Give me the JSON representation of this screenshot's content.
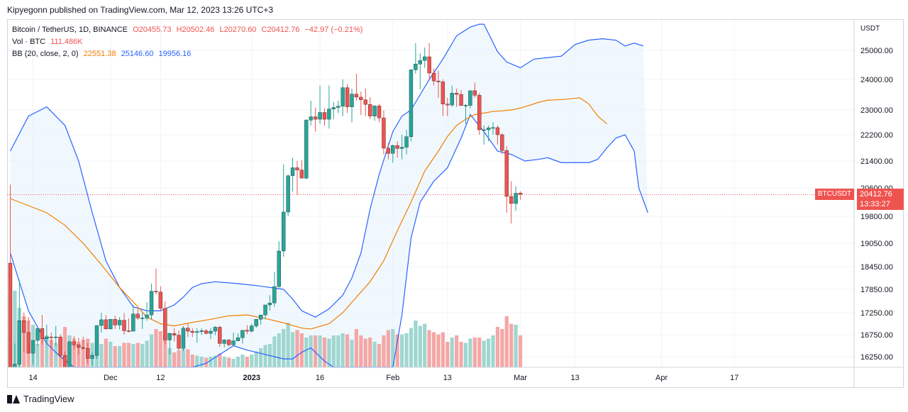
{
  "header": {
    "published": "Kipyegonn published on TradingView.com, Mar 12, 2023 13:26 UTC+3"
  },
  "legend": {
    "symbol": "Bitcoin / TetherUS, 1D, BINANCE",
    "open": "O20455.73",
    "high": "H20502.46",
    "low": "L20270.60",
    "close": "C20412.76",
    "change": "−42.97 (−0.21%)",
    "vol_label": "Vol · BTC",
    "vol_value": "111.486K",
    "bb_label": "BB (20, close, 2, 0)",
    "bb_basis": "22551.38",
    "bb_upper": "25146.60",
    "bb_lower": "19956.16"
  },
  "price_axis": {
    "currency": "USDT",
    "symbol_tag": "BTCUSDT",
    "last_price": "20412.76",
    "countdown": "13:33:27"
  },
  "footer": {
    "brand": "TradingView"
  },
  "colors": {
    "up": "#26a69a",
    "down": "#ef5350",
    "basis": "#f57c00",
    "bands": "#2962ff",
    "band_fill": "#e3f2fd",
    "vol_up": "#9fd6d0",
    "vol_down": "#f4a7a6"
  },
  "chart_data": {
    "type": "candlestick",
    "title": "Bitcoin / TetherUS, 1D, BINANCE",
    "ylabel": "USDT",
    "y_ticks": [
      25000,
      24000,
      23000,
      22200,
      21400,
      20600,
      19800,
      19050,
      18450,
      17850,
      17250,
      16750,
      16250
    ],
    "y_tick_labels": [
      "25000.00",
      "24000.00",
      "23000.00",
      "22200.00",
      "21400.00",
      "20600.00",
      "19800.00",
      "19050.00",
      "18450.00",
      "17850.00",
      "17250.00",
      "16750.00",
      "16250.00"
    ],
    "x_ticks": [
      {
        "date": "2022-11-14",
        "label": "14"
      },
      {
        "date": "2022-12-01",
        "label": "Dec"
      },
      {
        "date": "2022-12-12",
        "label": "12"
      },
      {
        "date": "2023-01-01",
        "label": "2023"
      },
      {
        "date": "2023-01-16",
        "label": "16"
      },
      {
        "date": "2023-02-01",
        "label": "Feb"
      },
      {
        "date": "2023-02-13",
        "label": "13"
      },
      {
        "date": "2023-03-01",
        "label": "Mar"
      },
      {
        "date": "2023-03-13",
        "label": "13"
      },
      {
        "date": "2023-04-01",
        "label": "Apr"
      },
      {
        "date": "2023-04-17",
        "label": "17"
      }
    ],
    "start_date": "2022-11-09",
    "ohlc": [
      [
        18541,
        20700,
        15590,
        15880
      ],
      [
        15880,
        16550,
        14700,
        16080
      ],
      [
        16080,
        18100,
        16000,
        17070
      ],
      [
        17070,
        17250,
        16350,
        16800
      ],
      [
        16800,
        17150,
        16400,
        16330
      ],
      [
        16330,
        16520,
        16080,
        16620
      ],
      [
        16620,
        16900,
        16500,
        16890
      ],
      [
        16890,
        17200,
        16530,
        16660
      ],
      [
        16660,
        16980,
        16560,
        16700
      ],
      [
        16700,
        16800,
        16440,
        16690
      ],
      [
        16690,
        16950,
        16500,
        16700
      ],
      [
        16700,
        16760,
        16260,
        16280
      ],
      [
        16280,
        16370,
        15480,
        15780
      ],
      [
        15780,
        16600,
        15750,
        16590
      ],
      [
        16590,
        16720,
        16420,
        16520
      ],
      [
        16520,
        16680,
        16300,
        16460
      ],
      [
        16460,
        16700,
        16400,
        16440
      ],
      [
        16440,
        16560,
        16100,
        16210
      ],
      [
        16210,
        16350,
        16050,
        16280
      ],
      [
        16280,
        16880,
        16200,
        16960
      ],
      [
        16960,
        17250,
        16800,
        17090
      ],
      [
        17090,
        17200,
        16870,
        16880
      ],
      [
        16880,
        17090,
        16900,
        17100
      ],
      [
        17100,
        17180,
        16880,
        16970
      ],
      [
        16970,
        17150,
        16870,
        17080
      ],
      [
        17080,
        17240,
        16750,
        16840
      ],
      [
        16840,
        17120,
        16800,
        16830
      ],
      [
        16830,
        17450,
        16870,
        17220
      ],
      [
        17220,
        17340,
        17090,
        17130
      ],
      [
        17130,
        17260,
        16880,
        17130
      ],
      [
        17130,
        17520,
        17070,
        17200
      ],
      [
        17200,
        18000,
        17100,
        17800
      ],
      [
        17800,
        18400,
        17720,
        17780
      ],
      [
        17780,
        17930,
        17300,
        17360
      ],
      [
        17360,
        17540,
        16530,
        16630
      ],
      [
        16630,
        16800,
        16300,
        16780
      ],
      [
        16780,
        16900,
        16600,
        16740
      ],
      [
        16740,
        16850,
        16400,
        16440
      ],
      [
        16440,
        16950,
        16380,
        16900
      ],
      [
        16900,
        17000,
        16700,
        16830
      ],
      [
        16830,
        16900,
        16700,
        16800
      ],
      [
        16800,
        16900,
        16570,
        16820
      ],
      [
        16820,
        16900,
        16750,
        16840
      ],
      [
        16840,
        16880,
        16760,
        16780
      ],
      [
        16780,
        16900,
        16650,
        16830
      ],
      [
        16830,
        16950,
        16740,
        16920
      ],
      [
        16920,
        16950,
        16470,
        16550
      ],
      [
        16550,
        16650,
        16460,
        16630
      ],
      [
        16630,
        16650,
        16490,
        16520
      ],
      [
        16520,
        16800,
        16500,
        16610
      ],
      [
        16610,
        16780,
        16600,
        16680
      ],
      [
        16680,
        16780,
        16550,
        16850
      ],
      [
        16850,
        16970,
        16760,
        16830
      ],
      [
        16830,
        17000,
        16800,
        16950
      ],
      [
        16950,
        17100,
        16900,
        17100
      ],
      [
        17100,
        17200,
        16980,
        17200
      ],
      [
        17200,
        17430,
        17100,
        17450
      ],
      [
        17450,
        17700,
        17300,
        17500
      ],
      [
        17500,
        18300,
        17400,
        17920
      ],
      [
        17920,
        19100,
        17900,
        18850
      ],
      [
        18850,
        21300,
        18700,
        19920
      ],
      [
        19920,
        21000,
        19800,
        20960
      ],
      [
        20960,
        21500,
        20500,
        21200
      ],
      [
        21200,
        21400,
        20400,
        21130
      ],
      [
        21130,
        21420,
        20900,
        20890
      ],
      [
        20890,
        22700,
        20860,
        22670
      ],
      [
        22670,
        23300,
        22500,
        22780
      ],
      [
        22780,
        23080,
        22300,
        22700
      ],
      [
        22700,
        23800,
        22550,
        22920
      ],
      [
        22920,
        23050,
        22500,
        22700
      ],
      [
        22700,
        23800,
        22400,
        23030
      ],
      [
        23030,
        23260,
        22700,
        23080
      ],
      [
        23080,
        23300,
        22900,
        23120
      ],
      [
        23120,
        24000,
        22800,
        23730
      ],
      [
        23730,
        23850,
        22900,
        23100
      ],
      [
        23100,
        23700,
        22600,
        23520
      ],
      [
        23520,
        24200,
        23300,
        23420
      ],
      [
        23420,
        23600,
        22840,
        23330
      ],
      [
        23330,
        23700,
        22800,
        23180
      ],
      [
        23180,
        23420,
        22700,
        22800
      ],
      [
        22800,
        23150,
        22650,
        23130
      ],
      [
        23130,
        23200,
        22600,
        22740
      ],
      [
        22740,
        22980,
        21600,
        21790
      ],
      [
        21790,
        21950,
        21450,
        21630
      ],
      [
        21630,
        21900,
        21350,
        21870
      ],
      [
        21870,
        22000,
        21500,
        21780
      ],
      [
        21780,
        22200,
        21450,
        21820
      ],
      [
        21820,
        22350,
        21600,
        22140
      ],
      [
        22140,
        24350,
        22000,
        24330
      ],
      [
        24330,
        25250,
        24200,
        24530
      ],
      [
        24530,
        24900,
        23680,
        24650
      ],
      [
        24650,
        25100,
        24400,
        24780
      ],
      [
        24780,
        25250,
        24000,
        24220
      ],
      [
        24220,
        24380,
        23800,
        23950
      ],
      [
        23950,
        24300,
        23400,
        23920
      ],
      [
        23920,
        24000,
        22800,
        23190
      ],
      [
        23190,
        23400,
        22800,
        23160
      ],
      [
        23160,
        23800,
        23100,
        23550
      ],
      [
        23550,
        23700,
        23100,
        23510
      ],
      [
        23510,
        23650,
        23150,
        23140
      ],
      [
        23140,
        23200,
        22550,
        23150
      ],
      [
        23150,
        23600,
        23050,
        23630
      ],
      [
        23630,
        23900,
        23400,
        23480
      ],
      [
        23480,
        23550,
        22200,
        22360
      ],
      [
        22360,
        22500,
        21900,
        22360
      ],
      [
        22360,
        22500,
        22000,
        22420
      ],
      [
        22420,
        22600,
        22200,
        22430
      ],
      [
        22430,
        22500,
        21900,
        22200
      ],
      [
        22200,
        22250,
        21600,
        21720
      ],
      [
        21720,
        21850,
        19900,
        20360
      ],
      [
        20360,
        20800,
        19600,
        20160
      ],
      [
        20160,
        20650,
        19950,
        20450
      ],
      [
        20455,
        20502,
        20270,
        20413
      ]
    ],
    "bb_basis": [
      [
        0,
        20300
      ],
      [
        4,
        20100
      ],
      [
        8,
        19900
      ],
      [
        12,
        19550
      ],
      [
        16,
        19050
      ],
      [
        20,
        18500
      ],
      [
        24,
        17900
      ],
      [
        28,
        17400
      ],
      [
        30,
        17150
      ],
      [
        33,
        17000
      ],
      [
        36,
        16950
      ],
      [
        40,
        17030
      ],
      [
        44,
        17100
      ],
      [
        48,
        17180
      ],
      [
        52,
        17200
      ],
      [
        56,
        17120
      ],
      [
        60,
        17020
      ],
      [
        64,
        16900
      ],
      [
        66,
        16880
      ],
      [
        70,
        17000
      ],
      [
        73,
        17250
      ],
      [
        76,
        17650
      ],
      [
        79,
        18050
      ],
      [
        82,
        18600
      ],
      [
        85,
        19400
      ],
      [
        88,
        20200
      ],
      [
        91,
        21100
      ],
      [
        94,
        21700
      ],
      [
        96,
        22150
      ],
      [
        98,
        22500
      ],
      [
        100,
        22700
      ],
      [
        102,
        22850
      ],
      [
        104,
        22900
      ],
      [
        106,
        22950
      ],
      [
        108,
        22970
      ],
      [
        110,
        23000
      ],
      [
        112,
        23060
      ],
      [
        114,
        23150
      ],
      [
        116,
        23250
      ],
      [
        118,
        23320
      ],
      [
        120,
        23330
      ],
      [
        122,
        23350
      ],
      [
        124,
        23380
      ],
      [
        125,
        23400
      ],
      [
        127,
        23200
      ],
      [
        129,
        22800
      ],
      [
        131,
        22550
      ]
    ],
    "bb_upper": [
      [
        0,
        21700
      ],
      [
        4,
        22800
      ],
      [
        8,
        23100
      ],
      [
        12,
        22500
      ],
      [
        15,
        21400
      ],
      [
        18,
        19900
      ],
      [
        21,
        18600
      ],
      [
        24,
        17900
      ],
      [
        27,
        17400
      ],
      [
        30,
        17300
      ],
      [
        33,
        17300
      ],
      [
        36,
        17450
      ],
      [
        38,
        17650
      ],
      [
        40,
        17900
      ],
      [
        42,
        18000
      ],
      [
        45,
        18050
      ],
      [
        50,
        18000
      ],
      [
        54,
        17950
      ],
      [
        57,
        17900
      ],
      [
        60,
        17850
      ],
      [
        62,
        17600
      ],
      [
        64,
        17300
      ],
      [
        67,
        17150
      ],
      [
        70,
        17350
      ],
      [
        73,
        17700
      ],
      [
        75,
        18150
      ],
      [
        77,
        18800
      ],
      [
        79,
        20000
      ],
      [
        81,
        21000
      ],
      [
        84,
        22300
      ],
      [
        86,
        22800
      ],
      [
        88,
        23000
      ],
      [
        90,
        23500
      ],
      [
        92,
        24000
      ],
      [
        95,
        24700
      ],
      [
        98,
        25500
      ],
      [
        101,
        25800
      ],
      [
        103,
        25900
      ],
      [
        104,
        25900
      ],
      [
        107,
        24950
      ],
      [
        109,
        24600
      ],
      [
        112,
        24400
      ],
      [
        115,
        24700
      ],
      [
        118,
        24750
      ],
      [
        121,
        24800
      ],
      [
        124,
        25200
      ],
      [
        127,
        25350
      ],
      [
        130,
        25400
      ],
      [
        133,
        25350
      ],
      [
        135,
        25150
      ],
      [
        137,
        25250
      ],
      [
        139,
        25150
      ]
    ],
    "bb_lower": [
      [
        0,
        18800
      ],
      [
        4,
        17300
      ],
      [
        8,
        16550
      ],
      [
        11,
        16250
      ],
      [
        14,
        15500
      ],
      [
        17,
        14900
      ],
      [
        20,
        14200
      ],
      [
        24,
        14000
      ],
      [
        28,
        14300
      ],
      [
        30,
        14500
      ],
      [
        33,
        14500
      ],
      [
        36,
        14700
      ],
      [
        38,
        15100
      ],
      [
        40,
        15400
      ],
      [
        43,
        16100
      ],
      [
        46,
        16300
      ],
      [
        49,
        16500
      ],
      [
        52,
        16400
      ],
      [
        56,
        16300
      ],
      [
        60,
        16200
      ],
      [
        62,
        16200
      ],
      [
        64,
        16350
      ],
      [
        66,
        16450
      ],
      [
        69,
        16150
      ],
      [
        71,
        15700
      ],
      [
        74,
        14200
      ],
      [
        77,
        13800
      ],
      [
        80,
        13600
      ],
      [
        82,
        14200
      ],
      [
        84,
        15400
      ],
      [
        86,
        17200
      ],
      [
        88,
        19200
      ],
      [
        90,
        20200
      ],
      [
        93,
        20800
      ],
      [
        96,
        21200
      ],
      [
        99,
        22100
      ],
      [
        101,
        22850
      ],
      [
        104,
        22300
      ],
      [
        107,
        21700
      ],
      [
        110,
        21600
      ],
      [
        113,
        21400
      ],
      [
        116,
        21450
      ],
      [
        118,
        21500
      ],
      [
        121,
        21350
      ],
      [
        124,
        21350
      ],
      [
        127,
        21350
      ],
      [
        129,
        21450
      ],
      [
        131,
        21800
      ],
      [
        133,
        22100
      ],
      [
        135,
        22200
      ],
      [
        137,
        21700
      ],
      [
        138,
        20600
      ],
      [
        140,
        19900
      ]
    ],
    "volume_max": 111.486,
    "volume_y_fraction": [
      0.62,
      0.72,
      0.56,
      0.48,
      0.44,
      0.4,
      0.22,
      0.32,
      0.3,
      0.26,
      0.23,
      0.26,
      0.38,
      0.3,
      0.27,
      0.24,
      0.26,
      0.27,
      0.23,
      0.2,
      0.22,
      0.27,
      0.24,
      0.2,
      0.2,
      0.23,
      0.23,
      0.22,
      0.23,
      0.22,
      0.25,
      0.31,
      0.36,
      0.34,
      0.28,
      0.18,
      0.14,
      0.16,
      0.17,
      0.17,
      0.12,
      0.11,
      0.1,
      0.09,
      0.1,
      0.11,
      0.13,
      0.1,
      0.09,
      0.08,
      0.1,
      0.12,
      0.1,
      0.12,
      0.15,
      0.18,
      0.21,
      0.22,
      0.29,
      0.32,
      0.36,
      0.42,
      0.33,
      0.35,
      0.32,
      0.28,
      0.3,
      0.3,
      0.3,
      0.28,
      0.27,
      0.3,
      0.3,
      0.32,
      0.31,
      0.26,
      0.36,
      0.3,
      0.27,
      0.28,
      0.24,
      0.22,
      0.3,
      0.35,
      0.36,
      0.31,
      0.31,
      0.32,
      0.37,
      0.44,
      0.39,
      0.41,
      0.35,
      0.33,
      0.31,
      0.33,
      0.24,
      0.28,
      0.3,
      0.24,
      0.23,
      0.27,
      0.28,
      0.28,
      0.25,
      0.27,
      0.3,
      0.38,
      0.36,
      0.48,
      0.41,
      0.4,
      0.3
    ]
  }
}
